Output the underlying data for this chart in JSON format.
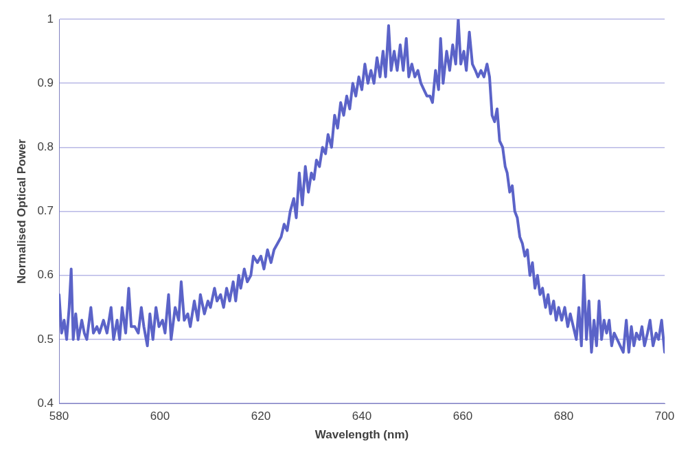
{
  "chart_data": {
    "type": "line",
    "xlabel": "Wavelength (nm)",
    "ylabel": "Normalised Optical Power",
    "xlim": [
      580,
      700
    ],
    "xticks": [
      580,
      600,
      620,
      640,
      660,
      680,
      700
    ],
    "ylim": [
      0.4,
      1
    ],
    "yticks": [
      0.4,
      0.5,
      0.6,
      0.7,
      0.8,
      0.9,
      1
    ],
    "grid": "y",
    "legend": false,
    "marker": "none",
    "line_style": "solid",
    "series": [
      {
        "color": "#5b63c8",
        "x": [
          580,
          580.5,
          581,
          581.5,
          582,
          582.4,
          582.8,
          583.3,
          583.8,
          584.5,
          585,
          585.5,
          586.3,
          586.8,
          587.5,
          588,
          588.8,
          589.5,
          590.3,
          590.8,
          591.5,
          592,
          592.5,
          593.2,
          593.8,
          594.3,
          595,
          595.7,
          596.3,
          596.8,
          597.5,
          598,
          598.6,
          599.2,
          599.8,
          600.5,
          601,
          601.7,
          602.2,
          603,
          603.7,
          604.2,
          604.8,
          605.5,
          606,
          606.8,
          607.5,
          608,
          608.8,
          609.5,
          610,
          610.8,
          611.3,
          612,
          612.6,
          613.2,
          613.8,
          614.5,
          615,
          615.6,
          616,
          616.7,
          617.3,
          618,
          618.5,
          619.3,
          620,
          620.6,
          621.3,
          622,
          622.6,
          623.3,
          624,
          624.6,
          625.2,
          625.8,
          626.5,
          627,
          627.6,
          628.2,
          628.8,
          629.4,
          630,
          630.5,
          631,
          631.6,
          632.2,
          632.8,
          633.3,
          634,
          634.6,
          635.2,
          635.8,
          636.4,
          637,
          637.6,
          638.2,
          638.8,
          639.4,
          640,
          640.6,
          641.2,
          641.8,
          642.4,
          643,
          643.6,
          644.2,
          644.7,
          645.3,
          645.8,
          646.4,
          647,
          647.6,
          648.2,
          648.8,
          649.3,
          649.9,
          650.5,
          651.1,
          651.7,
          652.3,
          652.9,
          653.5,
          654,
          654.6,
          655.2,
          655.6,
          656.1,
          656.8,
          657.4,
          658,
          658.6,
          659.1,
          659.6,
          660.2,
          660.7,
          661.3,
          661.9,
          662.5,
          663,
          663.6,
          664.2,
          664.8,
          665.3,
          665.8,
          666.3,
          666.8,
          667.3,
          667.9,
          668.4,
          668.8,
          669.3,
          669.8,
          670.3,
          670.8,
          671.3,
          671.8,
          672.3,
          672.8,
          673.3,
          673.8,
          674.3,
          674.8,
          675.3,
          675.8,
          676.4,
          676.9,
          677.4,
          678,
          678.5,
          679,
          679.6,
          680.2,
          680.8,
          681.3,
          681.9,
          682.5,
          683,
          683.5,
          684,
          684.5,
          685,
          685.5,
          686,
          686.5,
          687,
          687.5,
          688,
          688.5,
          689,
          689.5,
          690,
          690.6,
          691.2,
          691.8,
          692.4,
          692.9,
          693.4,
          693.9,
          694.4,
          695,
          695.5,
          696,
          696.6,
          697.1,
          697.7,
          698.3,
          698.8,
          699.4,
          700
        ],
        "values": [
          0.57,
          0.51,
          0.53,
          0.5,
          0.55,
          0.61,
          0.5,
          0.54,
          0.5,
          0.53,
          0.51,
          0.5,
          0.55,
          0.51,
          0.52,
          0.51,
          0.53,
          0.51,
          0.55,
          0.5,
          0.53,
          0.5,
          0.55,
          0.51,
          0.58,
          0.52,
          0.52,
          0.51,
          0.55,
          0.52,
          0.49,
          0.54,
          0.5,
          0.55,
          0.52,
          0.53,
          0.51,
          0.57,
          0.5,
          0.55,
          0.53,
          0.59,
          0.53,
          0.54,
          0.52,
          0.56,
          0.53,
          0.57,
          0.54,
          0.56,
          0.55,
          0.58,
          0.56,
          0.57,
          0.55,
          0.58,
          0.56,
          0.59,
          0.56,
          0.6,
          0.58,
          0.61,
          0.59,
          0.6,
          0.63,
          0.62,
          0.63,
          0.61,
          0.64,
          0.62,
          0.64,
          0.65,
          0.66,
          0.68,
          0.67,
          0.7,
          0.72,
          0.69,
          0.76,
          0.71,
          0.77,
          0.73,
          0.76,
          0.75,
          0.78,
          0.77,
          0.8,
          0.79,
          0.82,
          0.8,
          0.85,
          0.83,
          0.87,
          0.85,
          0.88,
          0.86,
          0.9,
          0.88,
          0.91,
          0.89,
          0.93,
          0.9,
          0.92,
          0.9,
          0.94,
          0.91,
          0.95,
          0.91,
          0.99,
          0.92,
          0.95,
          0.92,
          0.96,
          0.92,
          0.97,
          0.91,
          0.93,
          0.91,
          0.92,
          0.9,
          0.89,
          0.88,
          0.88,
          0.87,
          0.92,
          0.89,
          0.97,
          0.9,
          0.95,
          0.92,
          0.96,
          0.93,
          1,
          0.93,
          0.95,
          0.92,
          0.98,
          0.93,
          0.92,
          0.91,
          0.92,
          0.91,
          0.93,
          0.91,
          0.85,
          0.84,
          0.86,
          0.81,
          0.8,
          0.77,
          0.76,
          0.73,
          0.74,
          0.7,
          0.69,
          0.66,
          0.65,
          0.63,
          0.64,
          0.6,
          0.62,
          0.58,
          0.6,
          0.57,
          0.58,
          0.55,
          0.57,
          0.54,
          0.56,
          0.53,
          0.55,
          0.53,
          0.55,
          0.52,
          0.54,
          0.52,
          0.5,
          0.55,
          0.49,
          0.6,
          0.5,
          0.56,
          0.48,
          0.53,
          0.49,
          0.56,
          0.5,
          0.53,
          0.51,
          0.53,
          0.49,
          0.51,
          0.5,
          0.49,
          0.48,
          0.53,
          0.48,
          0.52,
          0.49,
          0.51,
          0.5,
          0.52,
          0.49,
          0.51,
          0.53,
          0.49,
          0.51,
          0.5,
          0.53,
          0.48
        ]
      }
    ]
  }
}
